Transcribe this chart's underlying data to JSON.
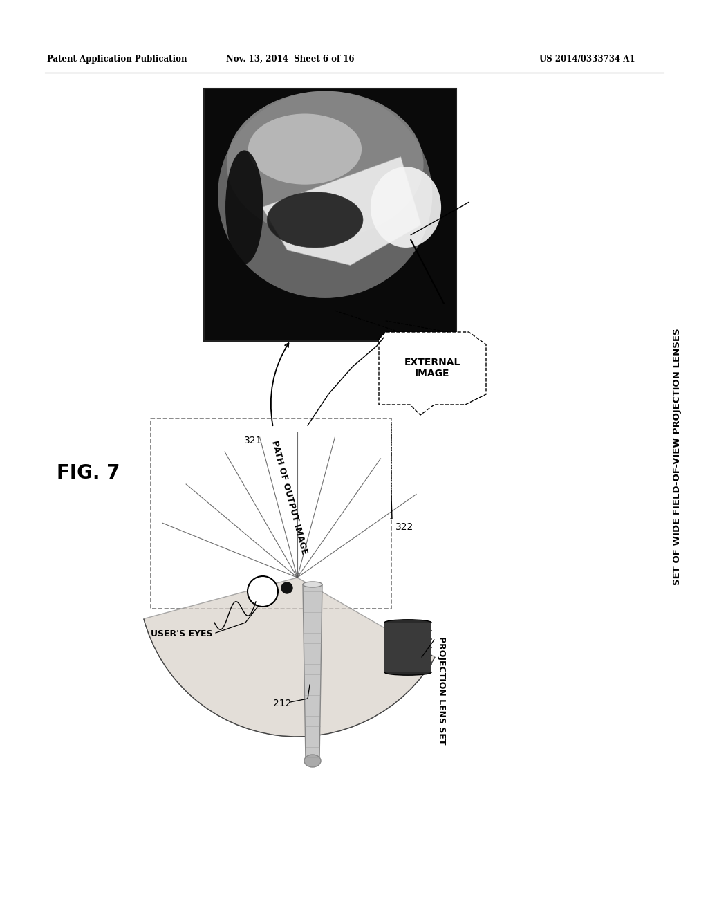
{
  "header_left": "Patent Application Publication",
  "header_mid": "Nov. 13, 2014  Sheet 6 of 16",
  "header_right": "US 2014/0333734 A1",
  "fig_label": "FIG. 7",
  "right_label": "SET OF WIDE FIELD-OF-VIEW PROJECTION LENSES",
  "label_321": "321",
  "label_path": "PATH OF OUTPUT IMAGE",
  "label_ext_image": "EXTERNAL\nIMAGE",
  "label_322": "322",
  "label_user_eyes": "USER'S EYES",
  "label_212": "212",
  "label_proj_lens": "PROJECTION LENS SET",
  "bg_color": "#ffffff"
}
